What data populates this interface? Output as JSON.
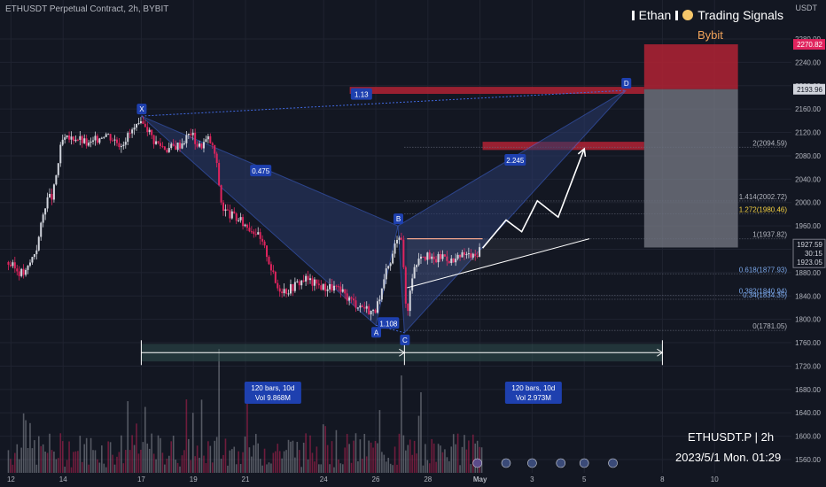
{
  "header": {
    "title": "ETHUSDT Perpetual Contract, 2h, BYBIT",
    "author": "Ethan",
    "channel": "Trading Signals",
    "unit": "USDT",
    "exchange_label": "Bybit",
    "symbol_caption": "ETHUSDT.P | 2h",
    "datetime_caption": "2023/5/1 Mon. 01:29"
  },
  "colors": {
    "background": "#131722",
    "grid": "#1f2330",
    "up": "#d1d4dc",
    "down": "#e0245e",
    "pattern_fill": "#2a3a6b",
    "pattern_line": "#4169e1",
    "resistance_zone": "#b22234",
    "label_box": "#1e40af"
  },
  "chart_data": {
    "type": "candlestick",
    "title": "ETHUSDT Perpetual Contract, 2h, BYBIT",
    "y_axis": {
      "unit": "USDT",
      "ylim": [
        1553,
        2285
      ],
      "ticks": [
        2280,
        2240,
        2200,
        2160,
        2120,
        2080,
        2040,
        2000,
        1960,
        1920,
        1880,
        1840,
        1800,
        1760,
        1720,
        1680,
        1640,
        1600,
        1560
      ],
      "tick_labels": [
        "2280.00",
        "2240.00",
        "2200.00",
        "2160.00",
        "2120.00",
        "2080.00",
        "2040.00",
        "2000.00",
        "1960.00",
        "1920.00",
        "1880.00",
        "1840.00",
        "1800.00",
        "1760.00",
        "1720.00",
        "1680.00",
        "1640.00",
        "1600.00",
        "1560.00"
      ]
    },
    "x_axis": {
      "range_days": [
        11.8,
        13.0
      ],
      "ticks": [
        {
          "label": "12",
          "day": 12
        },
        {
          "label": "14",
          "day": 14
        },
        {
          "label": "17",
          "day": 17
        },
        {
          "label": "19",
          "day": 19
        },
        {
          "label": "21",
          "day": 21
        },
        {
          "label": "24",
          "day": 24
        },
        {
          "label": "26",
          "day": 26
        },
        {
          "label": "28",
          "day": 28
        },
        {
          "label": "May",
          "day": 30
        },
        {
          "label": "3",
          "day": 32
        },
        {
          "label": "5",
          "day": 34
        },
        {
          "label": "8",
          "day": 37
        },
        {
          "label": "10",
          "day": 39
        }
      ]
    },
    "price_path": [
      {
        "day": 11.85,
        "price": 1898
      },
      {
        "day": 12.3,
        "price": 1882
      },
      {
        "day": 12.55,
        "price": 1878
      },
      {
        "day": 13.0,
        "price": 1925
      },
      {
        "day": 13.35,
        "price": 2005
      },
      {
        "day": 13.6,
        "price": 2010
      },
      {
        "day": 13.95,
        "price": 2105
      },
      {
        "day": 14.5,
        "price": 2112
      },
      {
        "day": 15.0,
        "price": 2098
      },
      {
        "day": 15.6,
        "price": 2120
      },
      {
        "day": 16.2,
        "price": 2100
      },
      {
        "day": 16.7,
        "price": 2125
      },
      {
        "day": 17.15,
        "price": 2135
      },
      {
        "day": 17.5,
        "price": 2105
      },
      {
        "day": 18.0,
        "price": 2092
      },
      {
        "day": 18.5,
        "price": 2100
      },
      {
        "day": 18.9,
        "price": 2120
      },
      {
        "day": 19.2,
        "price": 2095
      },
      {
        "day": 19.6,
        "price": 2110
      },
      {
        "day": 19.85,
        "price": 2080
      },
      {
        "day": 20.1,
        "price": 1990
      },
      {
        "day": 20.4,
        "price": 1980
      },
      {
        "day": 20.9,
        "price": 1965
      },
      {
        "day": 21.4,
        "price": 1950
      },
      {
        "day": 21.8,
        "price": 1915
      },
      {
        "day": 22.2,
        "price": 1855
      },
      {
        "day": 22.6,
        "price": 1850
      },
      {
        "day": 23.0,
        "price": 1862
      },
      {
        "day": 23.3,
        "price": 1870
      },
      {
        "day": 23.6,
        "price": 1862
      },
      {
        "day": 24.0,
        "price": 1855
      },
      {
        "day": 24.4,
        "price": 1855
      },
      {
        "day": 24.8,
        "price": 1842
      },
      {
        "day": 25.2,
        "price": 1828
      },
      {
        "day": 25.6,
        "price": 1820
      },
      {
        "day": 25.9,
        "price": 1812
      },
      {
        "day": 26.15,
        "price": 1830
      },
      {
        "day": 26.4,
        "price": 1880
      },
      {
        "day": 26.6,
        "price": 1900
      },
      {
        "day": 26.85,
        "price": 1950
      },
      {
        "day": 27.0,
        "price": 1940
      },
      {
        "day": 27.1,
        "price": 1855
      },
      {
        "day": 27.2,
        "price": 1800
      },
      {
        "day": 27.35,
        "price": 1870
      },
      {
        "day": 27.7,
        "price": 1915
      },
      {
        "day": 28.2,
        "price": 1900
      },
      {
        "day": 28.6,
        "price": 1910
      },
      {
        "day": 29.0,
        "price": 1898
      },
      {
        "day": 29.4,
        "price": 1912
      },
      {
        "day": 29.8,
        "price": 1906
      },
      {
        "day": 30.0,
        "price": 1924
      }
    ],
    "volume_peaks": [
      {
        "day": 20.0,
        "volume_pct": 100
      },
      {
        "day": 27.0,
        "volume_pct": 78
      }
    ],
    "xabcd_pattern": {
      "points": [
        {
          "label": "X",
          "day": 17.0,
          "price": 2148
        },
        {
          "label": "A",
          "day": 26.0,
          "price": 1790
        },
        {
          "label": "B",
          "day": 26.85,
          "price": 1960
        },
        {
          "label": "C",
          "day": 27.1,
          "price": 1777
        },
        {
          "label": "D",
          "day": 35.6,
          "price": 2192
        }
      ],
      "ratios": [
        {
          "label": "0.475",
          "between": "XA-B"
        },
        {
          "label": "1.108",
          "between": "AB-C"
        },
        {
          "label": "2.245",
          "between": "BC-D"
        },
        {
          "label": "1.13",
          "between": "XA-D"
        }
      ]
    },
    "fibonacci_levels": [
      {
        "label": "2(2094.59)",
        "price": 2094.59
      },
      {
        "label": "1.414(2002.72)",
        "price": 2002.72
      },
      {
        "label": "1.272(1980.46)",
        "price": 1980.46
      },
      {
        "label": "1(1937.82)",
        "price": 1937.82
      },
      {
        "label": "0.618(1877.93)",
        "price": 1877.93
      },
      {
        "label": "0.382(1840.94)",
        "price": 1840.94
      },
      {
        "label": "0.34(1834.35)",
        "price": 1834.35
      },
      {
        "label": "0(1781.05)",
        "price": 1781.05
      }
    ],
    "zones": [
      {
        "name": "resistance-d",
        "from_day": 25.0,
        "to_day": 36.3,
        "price_low": 2186,
        "price_high": 2198
      },
      {
        "name": "resistance-2",
        "from_day": 30.1,
        "to_day": 36.3,
        "price_low": 2090,
        "price_high": 2104
      }
    ],
    "position_tool": {
      "from_day": 36.3,
      "to_day": 39.9,
      "target_top": 2270.82,
      "entry": 2193.96,
      "stop": 1923.05,
      "entry_price_label": "2193.96",
      "target_price_label": "2270.82"
    },
    "triangle": {
      "top_line": {
        "from_day": 27.2,
        "to_day": 30.1,
        "price": 1938
      },
      "lower_line": {
        "from": {
          "day": 27.2,
          "price": 1854
        },
        "to": {
          "day": 34.2,
          "price": 1938
        }
      },
      "projection": [
        {
          "day": 30.1,
          "price": 1922
        },
        {
          "day": 31.0,
          "price": 1970
        },
        {
          "day": 31.6,
          "price": 1950
        },
        {
          "day": 32.2,
          "price": 2003
        },
        {
          "day": 33.0,
          "price": 1975
        },
        {
          "day": 34.0,
          "price": 2092
        }
      ]
    },
    "date_range_tool": {
      "from_day": 17.0,
      "mid_day": 27.1,
      "to_day": 37.0,
      "price_band": [
        1728,
        1758
      ],
      "stats": [
        {
          "line1": "120 bars, 10d",
          "line2": "Vol 9.868M"
        },
        {
          "line1": "120 bars, 10d",
          "line2": "Vol 2.973M"
        }
      ]
    },
    "price_labels": {
      "last": "1927.59",
      "countdown": "30:15",
      "prev": "1923.05"
    },
    "legend": "none"
  }
}
